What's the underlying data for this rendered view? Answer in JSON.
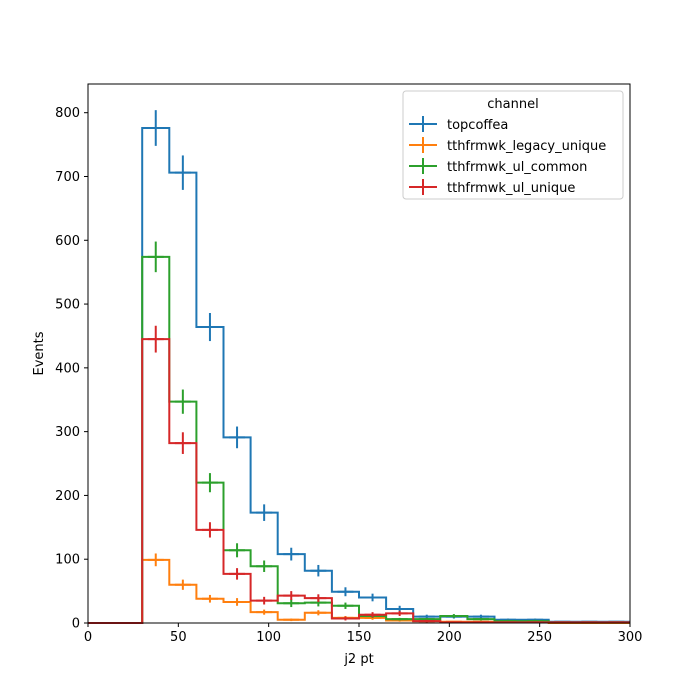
{
  "chart_data": {
    "type": "histogram-step",
    "xlabel": "j2 pt",
    "ylabel": "Events",
    "xlim": [
      0,
      300
    ],
    "ylim": [
      0,
      845
    ],
    "xticks": [
      0,
      50,
      100,
      150,
      200,
      250,
      300
    ],
    "yticks": [
      0,
      100,
      200,
      300,
      400,
      500,
      600,
      700,
      800
    ],
    "grid": false,
    "legend": {
      "title": "channel",
      "placement": "top-right"
    },
    "bin_edges": [
      0,
      15,
      30,
      45,
      60,
      75,
      90,
      105,
      120,
      135,
      150,
      165,
      180,
      195,
      210,
      225,
      240,
      255,
      270,
      285,
      300
    ],
    "series": [
      {
        "name": "topcoffea",
        "color": "#1f77b4",
        "values": [
          0,
          0,
          776,
          706,
          464,
          291,
          173,
          108,
          82,
          49,
          40,
          22,
          10,
          10,
          10,
          5,
          5,
          2,
          2,
          2
        ],
        "errors": [
          0,
          0,
          28,
          27,
          22,
          17,
          13,
          10,
          9,
          7,
          6,
          5,
          3,
          3,
          3,
          2,
          2,
          1,
          1,
          1
        ]
      },
      {
        "name": "tthfrmwk_legacy_unique",
        "color": "#ff7f0e",
        "values": [
          0,
          0,
          99,
          60,
          38,
          33,
          17,
          5,
          16,
          8,
          8,
          4,
          3,
          2,
          2,
          1,
          1,
          0,
          0,
          0
        ],
        "errors": [
          0,
          0,
          10,
          8,
          6,
          6,
          4,
          2,
          4,
          3,
          3,
          2,
          2,
          1,
          1,
          1,
          1,
          0,
          0,
          0
        ]
      },
      {
        "name": "tthfrmwk_ul_common",
        "color": "#2ca02c",
        "values": [
          0,
          0,
          574,
          347,
          220,
          114,
          89,
          31,
          32,
          27,
          11,
          6,
          6,
          11,
          6,
          3,
          3,
          1,
          1,
          1
        ],
        "errors": [
          0,
          0,
          24,
          19,
          15,
          11,
          9,
          6,
          6,
          5,
          3,
          2,
          2,
          3,
          2,
          2,
          2,
          1,
          1,
          1
        ]
      },
      {
        "name": "tthfrmwk_ul_unique",
        "color": "#d62728",
        "values": [
          0,
          0,
          445,
          282,
          146,
          77,
          35,
          43,
          39,
          7,
          13,
          15,
          3,
          1,
          1,
          1,
          1,
          1,
          1,
          1
        ],
        "errors": [
          0,
          0,
          21,
          17,
          12,
          9,
          6,
          7,
          6,
          3,
          4,
          4,
          2,
          1,
          1,
          1,
          1,
          1,
          1,
          1
        ]
      }
    ]
  }
}
